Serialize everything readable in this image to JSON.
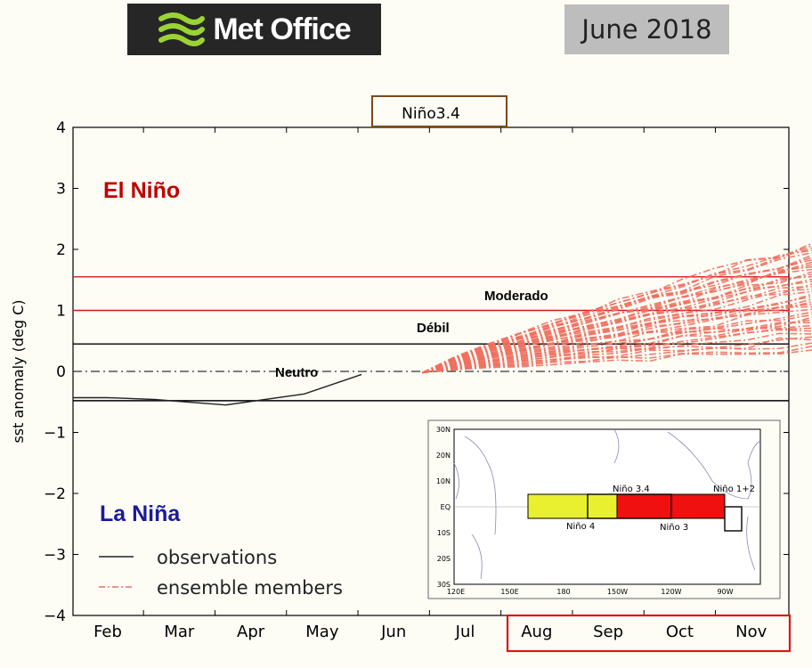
{
  "header": {
    "logo_text": "Met Office",
    "date": "June 2018"
  },
  "colors": {
    "el_nino": "#c00000",
    "la_nina": "#1a1a9e",
    "ensemble": "#f07060",
    "threshold_red": "#d81818",
    "nino4_box": "#e8f030",
    "nino3_box": "#f01010"
  },
  "chart_data": {
    "type": "line",
    "title": "Niño3.4",
    "ylabel": "sst anomaly (deg C)",
    "xlabel": "",
    "ylim": [
      -4,
      4
    ],
    "yticks": [
      4,
      3,
      2,
      1,
      0,
      -1,
      -2,
      -3,
      -4
    ],
    "ytick_labels": [
      "4",
      "3",
      "2",
      "1",
      "0",
      "−1",
      "−2",
      "−3",
      "−4"
    ],
    "categories": [
      "Feb",
      "Mar",
      "Apr",
      "May",
      "Jun",
      "Jul",
      "Aug",
      "Sep",
      "Oct",
      "Nov"
    ],
    "region_labels": {
      "el_nino": "El Niño",
      "la_nina": "La Niña",
      "moderado": "Moderado",
      "debil": "Débil",
      "neutro": "Neutro"
    },
    "thresholds": {
      "strong_upper": 1.55,
      "moderate": 1.0,
      "weak": 0.45,
      "zero": 0.0,
      "la_nina": -0.48
    },
    "observations": {
      "name": "observations",
      "x": [
        0.55,
        1.2,
        2.2,
        3.3,
        4.1
      ],
      "y": [
        -0.43,
        -0.46,
        -0.55,
        -0.37,
        -0.05
      ]
    },
    "ensemble": {
      "name": "ensemble members",
      "start_x": 4.4,
      "start_y": -0.02,
      "end_x": 9.85,
      "end_min": 0.35,
      "end_max": 2.1,
      "members": 42
    },
    "legend": {
      "position": "bottom-left",
      "entries": [
        "observations",
        "ensemble members"
      ]
    },
    "inset_map": {
      "lat_labels": [
        "30N",
        "20N",
        "10N",
        "EQ",
        "10S",
        "20S",
        "30S"
      ],
      "lon_labels": [
        "120E",
        "150E",
        "180",
        "150W",
        "120W",
        "90W"
      ],
      "regions": [
        "Niño 4",
        "Niño 3.4",
        "Niño 3",
        "Niño 1+2"
      ]
    }
  }
}
